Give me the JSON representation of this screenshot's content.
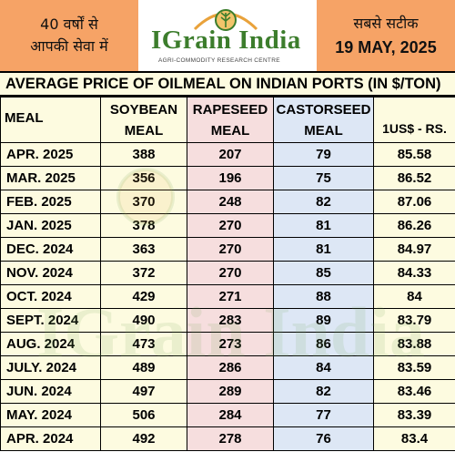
{
  "header": {
    "left_line1": "40 वर्षों से",
    "left_line2": "आपकी सेवा में",
    "logo_text": "IGrain India",
    "logo_subtitle": "AGRI-COMMODITY RESEARCH CENTRE",
    "right_line1": "सबसे सटीक",
    "date": "19 MAY, 2025"
  },
  "title": "AVERAGE PRICE OF OILMEAL ON INDIAN PORTS (IN $/TON)",
  "columns": {
    "meal": "MEAL",
    "soy": [
      "SOYBEAN",
      "MEAL"
    ],
    "rape": [
      "RAPESEED",
      "MEAL"
    ],
    "cast": [
      "CASTORSEED",
      "MEAL"
    ],
    "usd": "1US$ - RS."
  },
  "rows": [
    [
      "APR. 2025",
      "388",
      "207",
      "79",
      "85.58"
    ],
    [
      "MAR. 2025",
      "356",
      "196",
      "75",
      "86.52"
    ],
    [
      "FEB. 2025",
      "370",
      "248",
      "82",
      "87.06"
    ],
    [
      "JAN. 2025",
      "378",
      "270",
      "81",
      "86.26"
    ],
    [
      "DEC. 2024",
      "363",
      "270",
      "81",
      "84.97"
    ],
    [
      "NOV. 2024",
      "372",
      "270",
      "85",
      "84.33"
    ],
    [
      "OCT. 2024",
      "429",
      "271",
      "88",
      "84"
    ],
    [
      "SEPT. 2024",
      "490",
      "283",
      "89",
      "83.79"
    ],
    [
      "AUG. 2024",
      "473",
      "273",
      "86",
      "83.88"
    ],
    [
      "JULY. 2024",
      "489",
      "286",
      "84",
      "83.59"
    ],
    [
      "JUN. 2024",
      "497",
      "289",
      "82",
      "83.46"
    ],
    [
      "MAY. 2024",
      "506",
      "284",
      "77",
      "83.39"
    ],
    [
      "APR. 2024",
      "492",
      "278",
      "76",
      "83.4"
    ]
  ],
  "colors": {
    "header_orange": "#f6a366",
    "soy_bg": "#fdfbe0",
    "rape_bg": "#f6dede",
    "cast_bg": "#dde7f5",
    "brand_green": "#3c7d2c"
  }
}
